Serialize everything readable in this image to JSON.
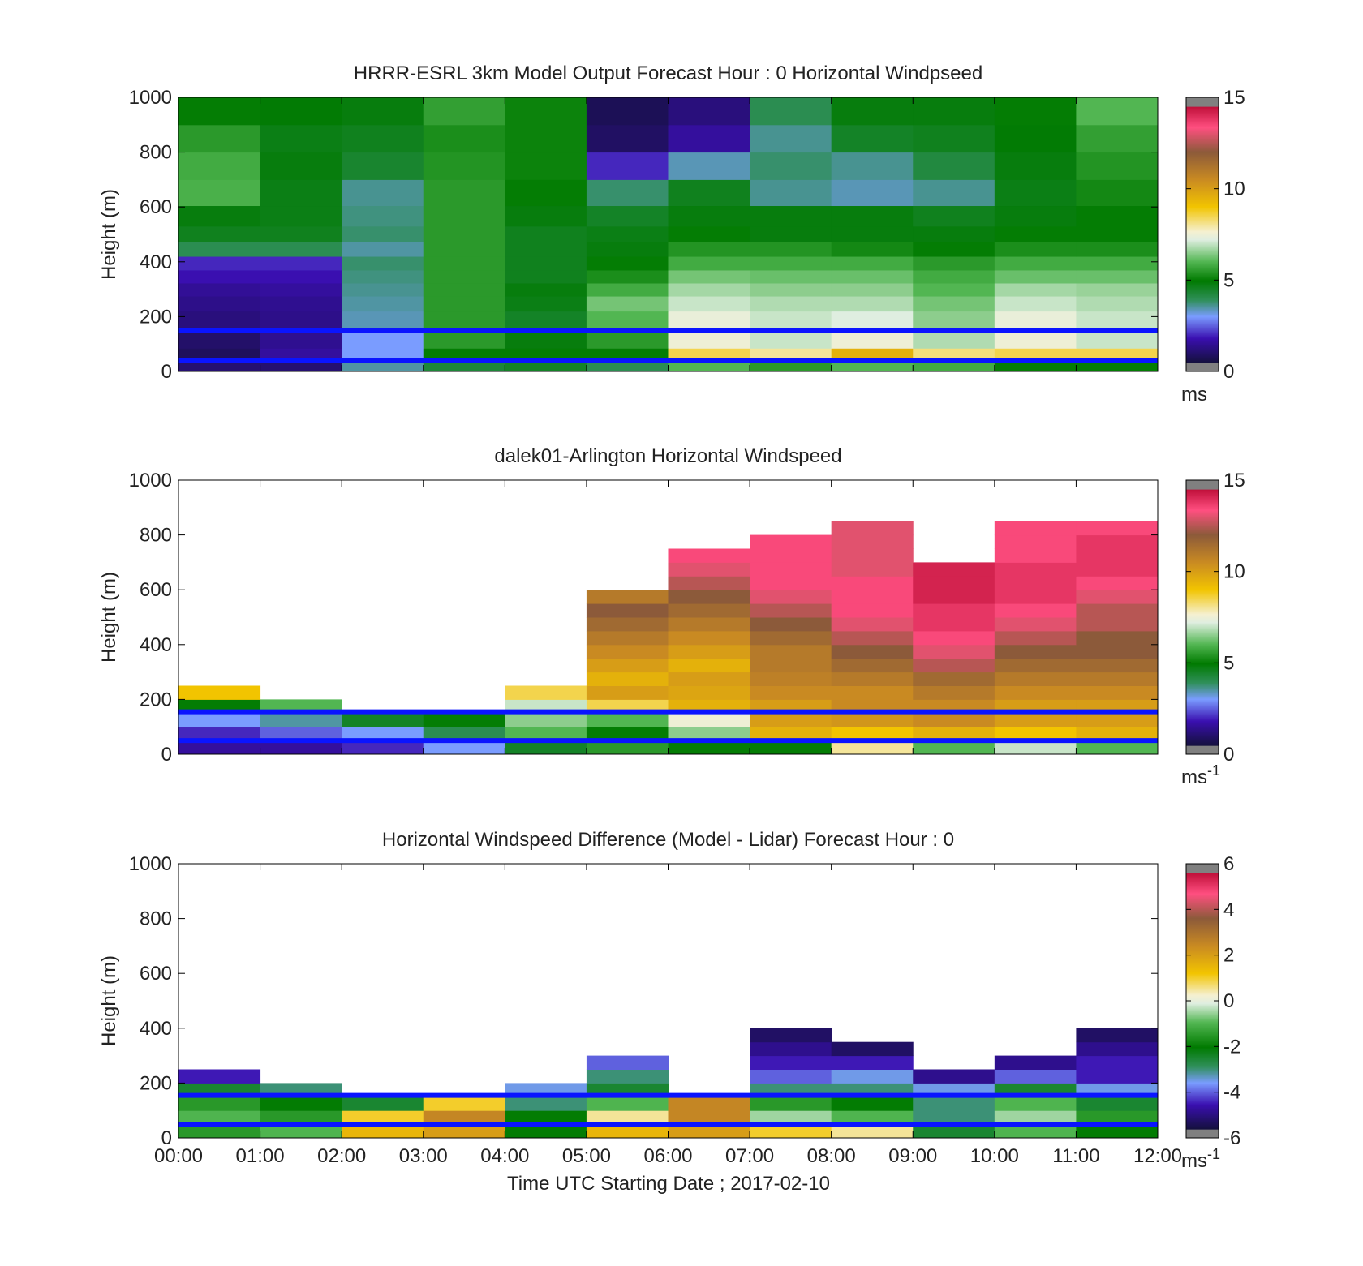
{
  "figure": {
    "xlabel": "Time UTC  Starting Date ; 2017-02-10",
    "x_tick_labels": [
      "00:00",
      "01:00",
      "02:00",
      "03:00",
      "04:00",
      "05:00",
      "06:00",
      "07:00",
      "08:00",
      "09:00",
      "10:00",
      "11:00",
      "12:00"
    ]
  },
  "chart_data": [
    {
      "type": "heatmap",
      "title": "HRRR-ESRL 3km Model Output   Forecast Hour : 0 Horizontal Windpseed",
      "ylabel": "Height (m)",
      "colorbar_unit": "ms",
      "colorbar_unit_exp": "",
      "ylim": [
        0,
        1000
      ],
      "xlim_hours": [
        0,
        12
      ],
      "y_ticks": [
        0,
        200,
        400,
        600,
        800,
        1000
      ],
      "colorbar_ticks": [
        0,
        5,
        10,
        15
      ],
      "colorbar_range": [
        0,
        15
      ],
      "colormap": "windspeed",
      "reference_lines_m": [
        40,
        150
      ],
      "x_hours": [
        0,
        1,
        2,
        3,
        4,
        5,
        6,
        7,
        8,
        9,
        10,
        11
      ],
      "y_levels_m": [
        25,
        60,
        110,
        190,
        250,
        300,
        345,
        395,
        445,
        500,
        560,
        650,
        750,
        850,
        950
      ],
      "values": [
        [
          0.8,
          0.8,
          3.5,
          4.3,
          4.5,
          4.0,
          6.0,
          5.5,
          6.0,
          5.8,
          5.0,
          5.0
        ],
        [
          0.5,
          1.5,
          3.0,
          5.0,
          5.0,
          5.0,
          8.5,
          8.0,
          9.5,
          8.2,
          8.5,
          8.5
        ],
        [
          0.7,
          1.3,
          3.0,
          5.5,
          4.8,
          5.5,
          7.5,
          7.0,
          7.5,
          6.8,
          7.5,
          7.0
        ],
        [
          1.0,
          1.2,
          3.4,
          5.5,
          4.5,
          6.0,
          7.4,
          7.0,
          7.2,
          6.5,
          7.4,
          7.0
        ],
        [
          1.2,
          1.3,
          3.5,
          5.5,
          4.7,
          6.3,
          7.0,
          6.8,
          6.8,
          6.3,
          7.0,
          6.8
        ],
        [
          1.4,
          1.5,
          3.6,
          5.5,
          4.8,
          5.8,
          6.7,
          6.5,
          6.5,
          6.0,
          6.7,
          6.6
        ],
        [
          1.8,
          1.8,
          3.7,
          5.5,
          4.6,
          5.3,
          6.3,
          6.2,
          6.2,
          5.8,
          6.2,
          6.2
        ],
        [
          2.0,
          2.0,
          3.8,
          5.5,
          4.6,
          5.0,
          5.8,
          5.8,
          5.8,
          5.5,
          5.8,
          5.8
        ],
        [
          4.0,
          4.0,
          3.5,
          5.5,
          4.6,
          4.8,
          5.4,
          5.4,
          5.2,
          5.0,
          5.3,
          5.3
        ],
        [
          4.6,
          4.6,
          3.8,
          5.5,
          4.6,
          4.7,
          5.0,
          4.8,
          4.8,
          4.8,
          5.0,
          5.0
        ],
        [
          4.8,
          4.7,
          3.7,
          5.5,
          4.8,
          4.5,
          4.8,
          4.8,
          4.8,
          4.6,
          4.8,
          5.0
        ],
        [
          5.9,
          4.7,
          3.6,
          5.5,
          5.0,
          3.8,
          4.6,
          3.6,
          3.4,
          3.6,
          4.7,
          5.2
        ],
        [
          5.8,
          4.8,
          4.4,
          5.4,
          5.1,
          2.0,
          3.4,
          3.8,
          3.6,
          4.2,
          4.8,
          5.4
        ],
        [
          5.5,
          4.7,
          4.6,
          5.3,
          5.1,
          0.6,
          1.5,
          3.6,
          4.5,
          4.6,
          4.9,
          5.6
        ],
        [
          5.0,
          4.9,
          4.8,
          5.6,
          5.1,
          0.4,
          1.0,
          4.0,
          4.8,
          4.8,
          5.0,
          6.0
        ]
      ]
    },
    {
      "type": "heatmap",
      "title": "dalek01-Arlington  Horizontal Windspeed",
      "ylabel": "Height (m)",
      "colorbar_unit": "ms",
      "colorbar_unit_exp": "-1",
      "ylim": [
        0,
        1000
      ],
      "xlim_hours": [
        0,
        12
      ],
      "y_ticks": [
        0,
        200,
        400,
        600,
        800,
        1000
      ],
      "colorbar_ticks": [
        0,
        5,
        10,
        15
      ],
      "colorbar_range": [
        0,
        15
      ],
      "colormap": "windspeed",
      "reference_lines_m": [
        50,
        155
      ],
      "x_hours": [
        0,
        1,
        2,
        3,
        4,
        5,
        6,
        7,
        8,
        9,
        10,
        11
      ],
      "y_levels_m": [
        25,
        75,
        125,
        175,
        225,
        275,
        325,
        375,
        425,
        475,
        525,
        575,
        625,
        675,
        725,
        775,
        825
      ],
      "values": [
        [
          1.5,
          1.5,
          2.0,
          3.0,
          4.5,
          5.5,
          5.0,
          5.0,
          8.0,
          6.0,
          7.0,
          6.0
        ],
        [
          2.0,
          2.5,
          3.0,
          4.0,
          6.0,
          5.0,
          6.5,
          9.5,
          9.0,
          9.5,
          9.0,
          9.5
        ],
        [
          3.0,
          3.5,
          4.5,
          5.0,
          6.5,
          6.0,
          7.5,
          10.0,
          10.2,
          10.5,
          10.0,
          10.0
        ],
        [
          5.0,
          6.0,
          null,
          null,
          7.0,
          8.5,
          9.5,
          10.0,
          10.5,
          10.5,
          10.0,
          10.0
        ],
        [
          9.0,
          null,
          null,
          null,
          8.5,
          10.0,
          9.8,
          10.5,
          10.5,
          11.0,
          10.5,
          10.5
        ],
        [
          null,
          null,
          null,
          null,
          null,
          9.5,
          10.0,
          10.8,
          11.0,
          11.5,
          11.0,
          11.0
        ],
        [
          null,
          null,
          null,
          null,
          null,
          10.0,
          9.5,
          11.0,
          11.5,
          12.5,
          11.5,
          11.5
        ],
        [
          null,
          null,
          null,
          null,
          null,
          10.5,
          10.0,
          11.0,
          12.0,
          13.0,
          12.0,
          12.0
        ],
        [
          null,
          null,
          null,
          null,
          null,
          11.0,
          10.5,
          11.5,
          12.5,
          13.5,
          12.5,
          12.0
        ],
        [
          null,
          null,
          null,
          null,
          null,
          11.5,
          11.0,
          12.0,
          13.0,
          14.0,
          13.0,
          12.5
        ],
        [
          null,
          null,
          null,
          null,
          null,
          12.0,
          11.5,
          12.5,
          13.5,
          14.0,
          13.5,
          12.5
        ],
        [
          null,
          null,
          null,
          null,
          null,
          11.0,
          12.0,
          13.0,
          13.5,
          14.5,
          14.0,
          13.0
        ],
        [
          null,
          null,
          null,
          null,
          null,
          null,
          12.5,
          13.5,
          13.5,
          14.5,
          14.0,
          13.5
        ],
        [
          null,
          null,
          null,
          null,
          null,
          null,
          13.0,
          13.5,
          13.0,
          14.5,
          14.0,
          14.0
        ],
        [
          null,
          null,
          null,
          null,
          null,
          null,
          13.5,
          13.5,
          13.0,
          null,
          13.5,
          14.0
        ],
        [
          null,
          null,
          null,
          null,
          null,
          null,
          null,
          13.5,
          13.0,
          null,
          13.5,
          14.0
        ],
        [
          null,
          null,
          null,
          null,
          null,
          null,
          null,
          null,
          13.0,
          null,
          13.5,
          13.5
        ]
      ]
    },
    {
      "type": "heatmap",
      "title": "Horizontal Windspeed Difference (Model - Lidar) Forecast Hour : 0",
      "ylabel": "Height (m)",
      "colorbar_unit": "ms",
      "colorbar_unit_exp": "-1",
      "ylim": [
        0,
        1000
      ],
      "xlim_hours": [
        0,
        12
      ],
      "y_ticks": [
        0,
        200,
        400,
        600,
        800,
        1000
      ],
      "colorbar_ticks": [
        -6,
        -4,
        -2,
        0,
        2,
        4,
        6
      ],
      "colorbar_range": [
        -6,
        6
      ],
      "colormap": "difference",
      "reference_lines_m": [
        50,
        155
      ],
      "x_hours": [
        0,
        1,
        2,
        3,
        4,
        5,
        6,
        7,
        8,
        9,
        10,
        11
      ],
      "y_levels_m": [
        25,
        75,
        125,
        175,
        225,
        275,
        325,
        375
      ],
      "values": [
        [
          -1.5,
          -1.0,
          1.5,
          2.0,
          -2.0,
          1.5,
          2.0,
          1.0,
          0.5,
          -2.5,
          -1.0,
          -2.0
        ],
        [
          -1.0,
          -1.5,
          1.0,
          2.5,
          -2.0,
          0.5,
          2.5,
          -0.5,
          -1.0,
          -3.0,
          -0.5,
          -1.5
        ],
        [
          -1.5,
          -2.0,
          -2.5,
          1.0,
          -3.0,
          -1.0,
          2.5,
          -1.5,
          -2.0,
          -3.0,
          -1.0,
          -2.5
        ],
        [
          -2.5,
          -3.0,
          null,
          null,
          -3.5,
          -2.5,
          null,
          -3.0,
          -3.0,
          -3.5,
          -2.5,
          -3.5
        ],
        [
          -4.5,
          null,
          null,
          null,
          null,
          -3.0,
          null,
          -4.0,
          -3.5,
          -5.0,
          -4.0,
          -4.5
        ],
        [
          null,
          null,
          null,
          null,
          null,
          -4.0,
          null,
          -4.5,
          -4.5,
          null,
          -5.0,
          -4.5
        ],
        [
          null,
          null,
          null,
          null,
          null,
          null,
          null,
          -5.0,
          -5.5,
          null,
          null,
          -5.0
        ],
        [
          null,
          null,
          null,
          null,
          null,
          null,
          null,
          -5.5,
          null,
          null,
          null,
          -5.5
        ]
      ]
    }
  ]
}
